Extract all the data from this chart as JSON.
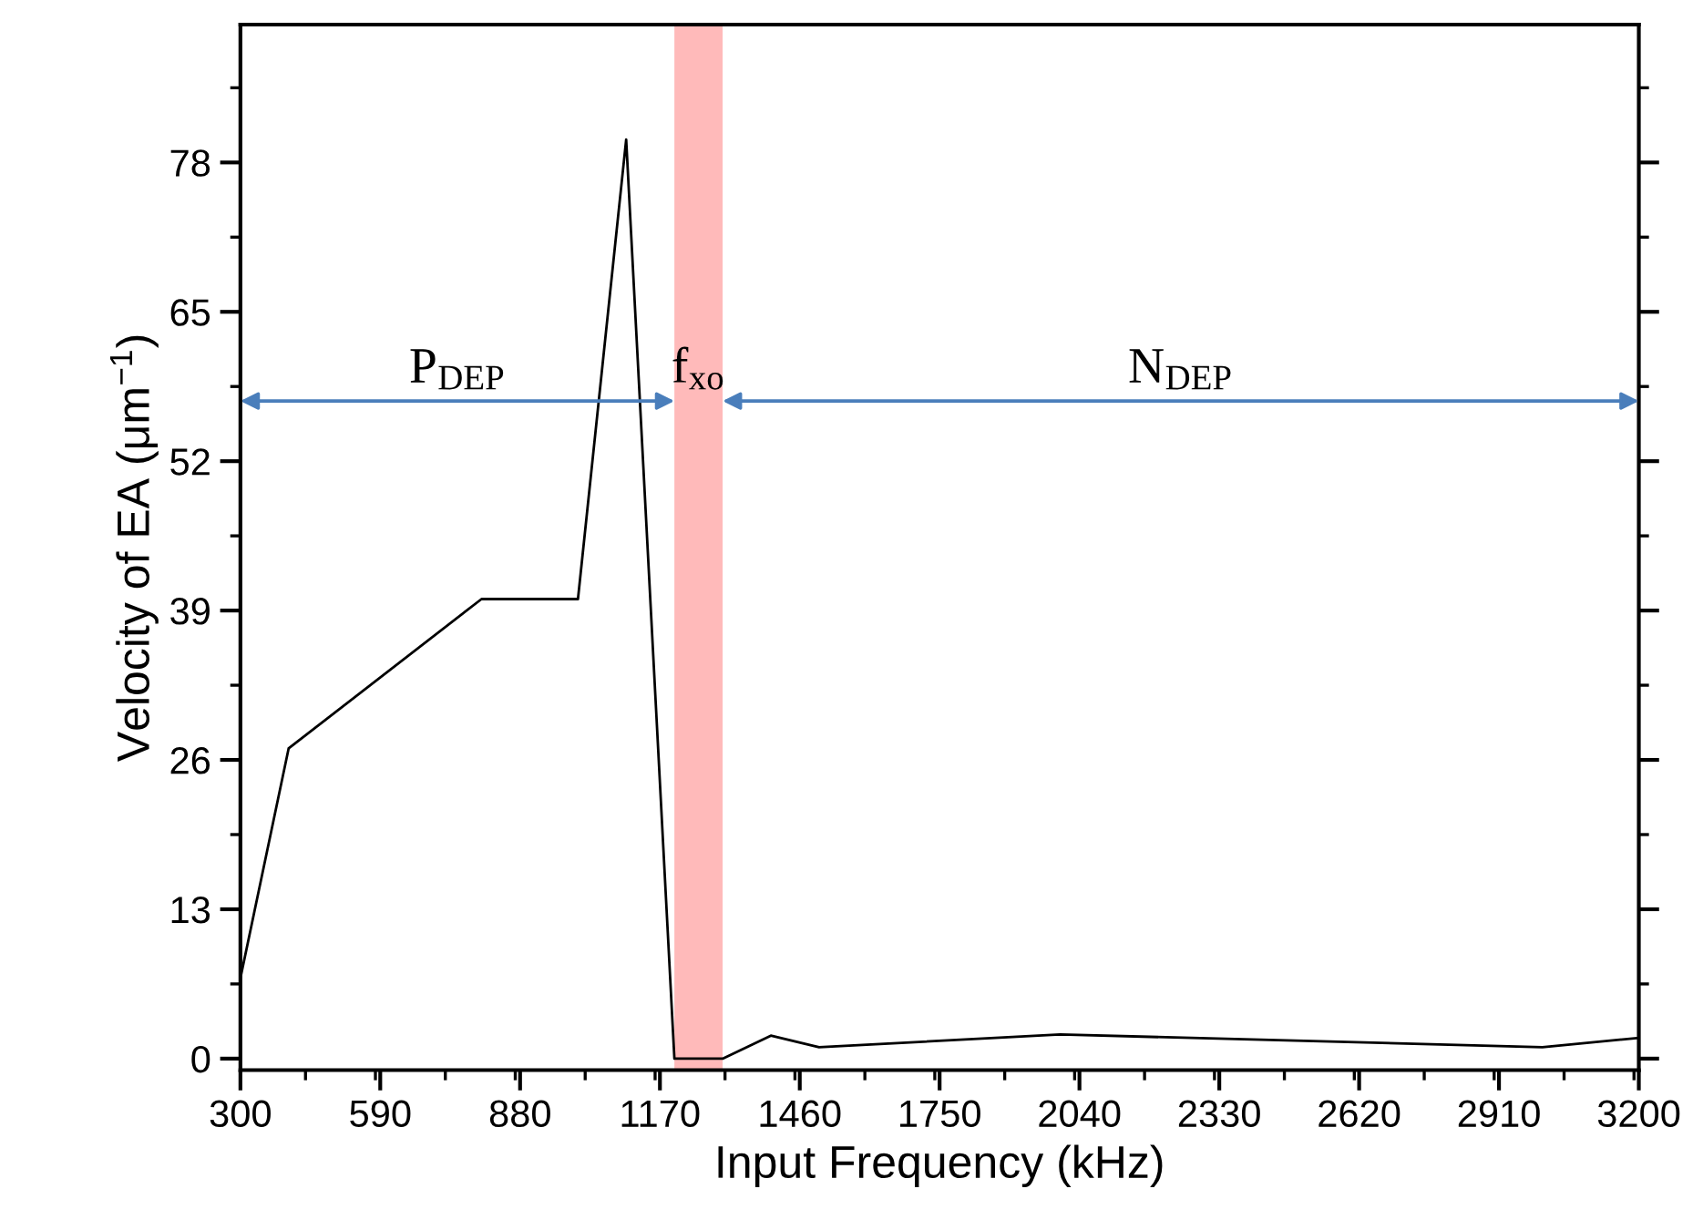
{
  "chart_data": {
    "type": "line",
    "xlabel": "Input Frequency (kHz)",
    "ylabel": "Velocity of EA (μm$^{−1}$)",
    "x": [
      300,
      400,
      800,
      1000,
      1100,
      1200,
      1300,
      1400,
      1500,
      2000,
      3000,
      3200
    ],
    "series": [
      {
        "color": "#000000",
        "values": [
          7,
          27,
          40,
          40,
          80,
          0,
          0,
          2,
          1,
          2.1,
          1,
          1.8
        ]
      }
    ],
    "xlim": [
      300,
      3200
    ],
    "xticks": [
      300,
      590,
      880,
      1170,
      1460,
      1750,
      2040,
      2330,
      2620,
      2910,
      3200
    ],
    "ylim": [
      -1,
      90
    ],
    "yticks": [
      0,
      13,
      26,
      39,
      52,
      65,
      78
    ],
    "bands": [
      {
        "axis": "x",
        "from": 1200,
        "to": 1300,
        "color": "#ffbaba"
      }
    ],
    "annotations": [
      "P$_{DEP}$",
      "f$_{xo}$",
      "N$_{DEP}$"
    ],
    "grid": false,
    "legend": false,
    "marker": "none",
    "line_style": "solid"
  }
}
